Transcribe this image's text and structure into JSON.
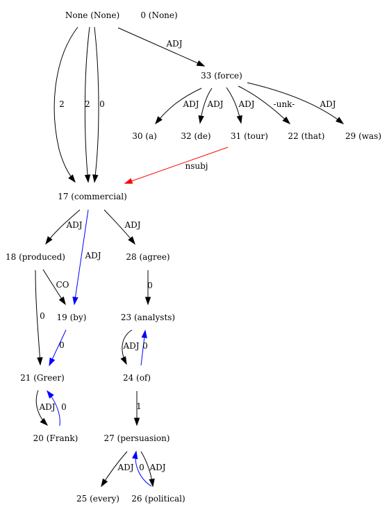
{
  "colors": {
    "default": "#000000",
    "nsubj": "#ff0000",
    "reverse": "#0000ff"
  },
  "nodes": [
    {
      "id": "none",
      "label": "None (None)"
    },
    {
      "id": "n0",
      "label": "0 (None)"
    },
    {
      "id": "n33",
      "label": "33 (force)"
    },
    {
      "id": "n30",
      "label": "30 (a)"
    },
    {
      "id": "n32",
      "label": "32 (de)"
    },
    {
      "id": "n31",
      "label": "31 (tour)"
    },
    {
      "id": "n22",
      "label": "22 (that)"
    },
    {
      "id": "n29",
      "label": "29 (was)"
    },
    {
      "id": "n17",
      "label": "17 (commercial)"
    },
    {
      "id": "n18",
      "label": "18 (produced)"
    },
    {
      "id": "n28",
      "label": "28 (agree)"
    },
    {
      "id": "n19",
      "label": "19 (by)"
    },
    {
      "id": "n23",
      "label": "23 (analysts)"
    },
    {
      "id": "n21",
      "label": "21 (Greer)"
    },
    {
      "id": "n24",
      "label": "24 (of)"
    },
    {
      "id": "n20",
      "label": "20 (Frank)"
    },
    {
      "id": "n27",
      "label": "27 (persuasion)"
    },
    {
      "id": "n25",
      "label": "25 (every)"
    },
    {
      "id": "n26",
      "label": "26 (political)"
    }
  ],
  "edges": [
    {
      "id": "e-none-17-a",
      "from": "none",
      "to": "n17",
      "label": "2",
      "color": "default"
    },
    {
      "id": "e-none-17-b",
      "from": "none",
      "to": "n17",
      "label": "2",
      "color": "default"
    },
    {
      "id": "e-none-17-c",
      "from": "none",
      "to": "n17",
      "label": "0",
      "color": "default"
    },
    {
      "id": "e-none-33",
      "from": "none",
      "to": "n33",
      "label": "ADJ",
      "color": "default"
    },
    {
      "id": "e-33-30",
      "from": "n33",
      "to": "n30",
      "label": "ADJ",
      "color": "default"
    },
    {
      "id": "e-33-32",
      "from": "n33",
      "to": "n32",
      "label": "ADJ",
      "color": "default"
    },
    {
      "id": "e-33-31",
      "from": "n33",
      "to": "n31",
      "label": "ADJ",
      "color": "default"
    },
    {
      "id": "e-33-22",
      "from": "n33",
      "to": "n22",
      "label": "-unk-",
      "color": "default"
    },
    {
      "id": "e-33-29",
      "from": "n33",
      "to": "n29",
      "label": "ADJ",
      "color": "default"
    },
    {
      "id": "e-31-17",
      "from": "n31",
      "to": "n17",
      "label": "nsubj",
      "color": "nsubj"
    },
    {
      "id": "e-17-18",
      "from": "n17",
      "to": "n18",
      "label": "ADJ",
      "color": "default"
    },
    {
      "id": "e-17-19",
      "from": "n17",
      "to": "n19",
      "label": "ADJ",
      "color": "reverse"
    },
    {
      "id": "e-17-28",
      "from": "n17",
      "to": "n28",
      "label": "ADJ",
      "color": "default"
    },
    {
      "id": "e-18-19",
      "from": "n18",
      "to": "n19",
      "label": "CO",
      "color": "default"
    },
    {
      "id": "e-18-21",
      "from": "n18",
      "to": "n21",
      "label": "0",
      "color": "default"
    },
    {
      "id": "e-19-21",
      "from": "n19",
      "to": "n21",
      "label": "0",
      "color": "reverse"
    },
    {
      "id": "e-28-23",
      "from": "n28",
      "to": "n23",
      "label": "0",
      "color": "default"
    },
    {
      "id": "e-23-24",
      "from": "n23",
      "to": "n24",
      "label": "ADJ",
      "color": "default"
    },
    {
      "id": "e-24-23",
      "from": "n24",
      "to": "n23",
      "label": "0",
      "color": "reverse"
    },
    {
      "id": "e-21-20",
      "from": "n21",
      "to": "n20",
      "label": "ADJ",
      "color": "default"
    },
    {
      "id": "e-20-21",
      "from": "n20",
      "to": "n21",
      "label": "0",
      "color": "reverse"
    },
    {
      "id": "e-24-27",
      "from": "n24",
      "to": "n27",
      "label": "1",
      "color": "default"
    },
    {
      "id": "e-27-25",
      "from": "n27",
      "to": "n25",
      "label": "ADJ",
      "color": "default"
    },
    {
      "id": "e-26-27",
      "from": "n26",
      "to": "n27",
      "label": "0",
      "color": "reverse"
    },
    {
      "id": "e-27-26",
      "from": "n27",
      "to": "n26",
      "label": "ADJ",
      "color": "default"
    }
  ]
}
